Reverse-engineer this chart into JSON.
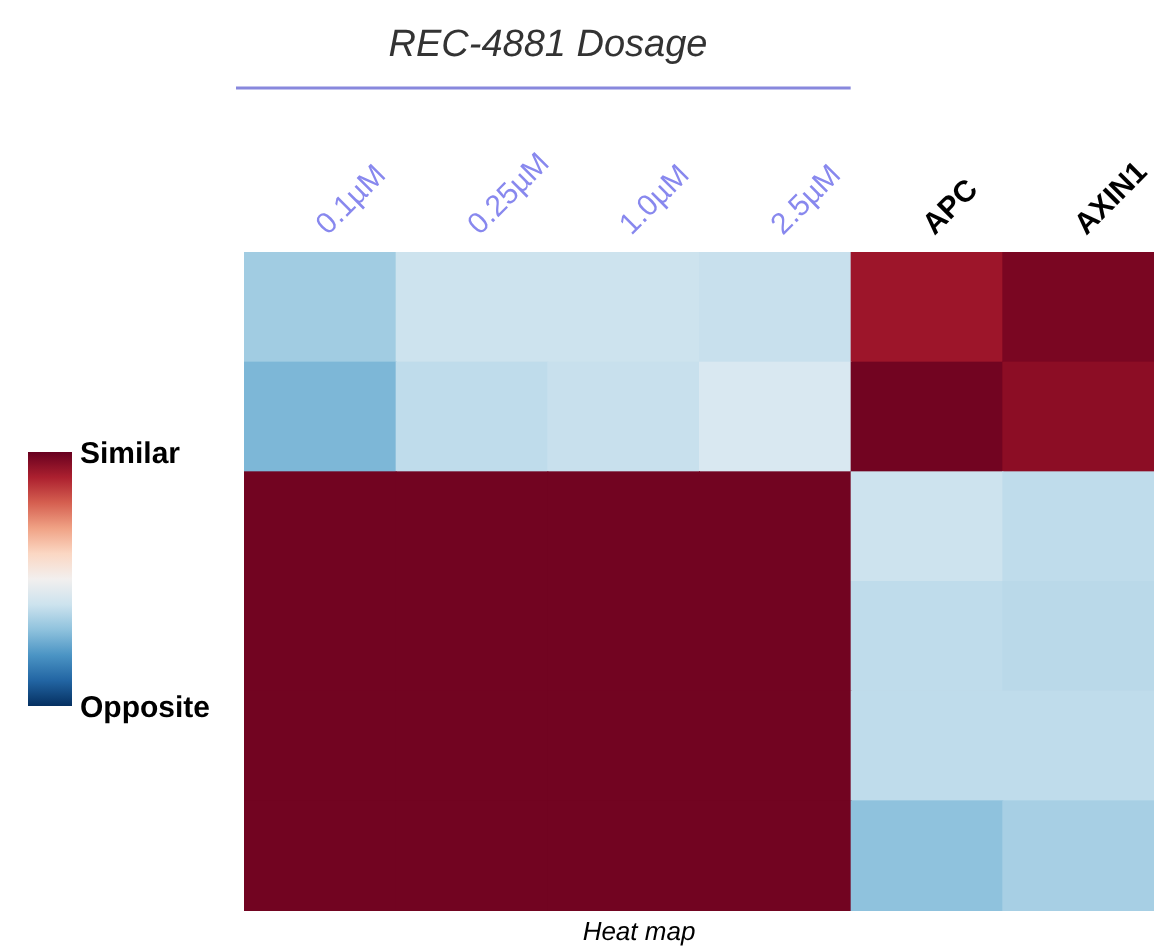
{
  "chart_data": {
    "type": "heatmap",
    "title": "REC-4881 Dosage",
    "annotations": [
      "Heat map"
    ],
    "categories": [
      "0.1µM",
      "0.25µM",
      "1.0µM",
      "2.5µM",
      "APC",
      "AXIN1"
    ],
    "y_categories": [
      null,
      null,
      null,
      null,
      null,
      null
    ],
    "cells": [
      [
        -0.35,
        -0.2,
        -0.2,
        -0.22,
        0.85,
        0.95
      ],
      [
        -0.45,
        -0.25,
        -0.22,
        -0.15,
        0.97,
        0.9
      ],
      [
        0.97,
        0.97,
        0.97,
        0.97,
        -0.2,
        -0.25
      ],
      [
        0.97,
        0.97,
        0.97,
        0.97,
        -0.25,
        -0.27
      ],
      [
        0.97,
        0.97,
        0.97,
        0.97,
        -0.25,
        -0.25
      ],
      [
        0.97,
        0.97,
        0.97,
        0.97,
        -0.4,
        -0.33
      ]
    ],
    "clim": [
      -1,
      1
    ],
    "cticks": [
      {
        "value": 1,
        "label": "Similar"
      },
      {
        "value": -1,
        "label": "Opposite"
      }
    ]
  }
}
